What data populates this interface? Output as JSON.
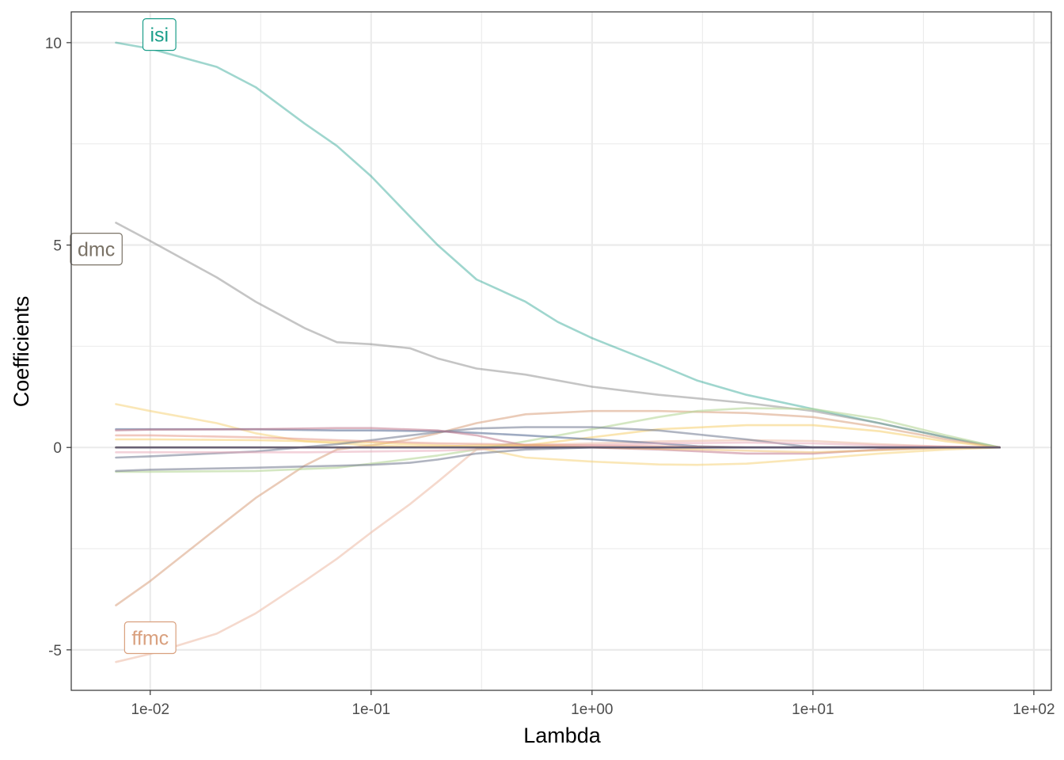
{
  "chart_data": {
    "type": "line",
    "xlabel": "Lambda",
    "ylabel": "Coefficients",
    "x_scale": "log10",
    "xlim": [
      0.00439,
      120
    ],
    "ylim": [
      -6.0,
      10.76
    ],
    "x_ticks": [
      {
        "value": 0.01,
        "label": "1e-02"
      },
      {
        "value": 0.1,
        "label": "1e-01"
      },
      {
        "value": 1,
        "label": "1e+00"
      },
      {
        "value": 10,
        "label": "1e+01"
      },
      {
        "value": 100,
        "label": "1e+02"
      }
    ],
    "y_ticks": [
      {
        "value": -5,
        "label": "-5"
      },
      {
        "value": 0,
        "label": "0"
      },
      {
        "value": 5,
        "label": "5"
      },
      {
        "value": 10,
        "label": "10"
      }
    ],
    "grid": true,
    "legend": "none",
    "series": [
      {
        "label": "isi",
        "color": "#1b9e8a",
        "opacity": 0.42,
        "label_color": "#1b9e8a",
        "label_at": [
          0.011,
          10.2
        ],
        "values": [
          [
            0.007,
            10.0
          ],
          [
            0.01,
            9.85
          ],
          [
            0.02,
            9.4
          ],
          [
            0.03,
            8.9
          ],
          [
            0.05,
            8.0
          ],
          [
            0.07,
            7.45
          ],
          [
            0.1,
            6.7
          ],
          [
            0.15,
            5.7
          ],
          [
            0.2,
            5.0
          ],
          [
            0.3,
            4.15
          ],
          [
            0.5,
            3.6
          ],
          [
            0.7,
            3.1
          ],
          [
            1,
            2.7
          ],
          [
            2,
            2.05
          ],
          [
            3,
            1.65
          ],
          [
            5,
            1.3
          ],
          [
            10,
            0.95
          ],
          [
            20,
            0.6
          ],
          [
            40,
            0.25
          ],
          [
            70,
            0.0
          ]
        ]
      },
      {
        "label": "dmc",
        "color": "#8c8c8c",
        "opacity": 0.5,
        "label_color": "#7a7266",
        "label_at": [
          0.0057,
          4.9
        ],
        "values": [
          [
            0.007,
            5.55
          ],
          [
            0.01,
            5.1
          ],
          [
            0.02,
            4.2
          ],
          [
            0.03,
            3.6
          ],
          [
            0.05,
            2.95
          ],
          [
            0.07,
            2.6
          ],
          [
            0.1,
            2.55
          ],
          [
            0.15,
            2.45
          ],
          [
            0.2,
            2.2
          ],
          [
            0.3,
            1.95
          ],
          [
            0.5,
            1.8
          ],
          [
            1,
            1.5
          ],
          [
            2,
            1.3
          ],
          [
            5,
            1.1
          ],
          [
            10,
            0.9
          ],
          [
            20,
            0.6
          ],
          [
            40,
            0.25
          ],
          [
            70,
            0.0
          ]
        ]
      },
      {
        "label": "ffmc",
        "color": "#d9a07e",
        "opacity": 0.55,
        "label_color": "#d9a07e",
        "label_at": [
          0.01,
          -4.7
        ],
        "values": [
          [
            0.007,
            -3.9
          ],
          [
            0.01,
            -3.3
          ],
          [
            0.02,
            -2.0
          ],
          [
            0.03,
            -1.25
          ],
          [
            0.05,
            -0.45
          ],
          [
            0.07,
            -0.05
          ],
          [
            0.1,
            0.05
          ],
          [
            0.15,
            0.2
          ],
          [
            0.2,
            0.35
          ],
          [
            0.3,
            0.6
          ],
          [
            0.5,
            0.82
          ],
          [
            1,
            0.9
          ],
          [
            2,
            0.9
          ],
          [
            5,
            0.85
          ],
          [
            10,
            0.75
          ],
          [
            20,
            0.5
          ],
          [
            40,
            0.2
          ],
          [
            70,
            0.0
          ]
        ]
      },
      {
        "color": "#eebfac",
        "opacity": 0.6,
        "values": [
          [
            0.007,
            -5.3
          ],
          [
            0.01,
            -5.1
          ],
          [
            0.02,
            -4.6
          ],
          [
            0.03,
            -4.1
          ],
          [
            0.05,
            -3.3
          ],
          [
            0.07,
            -2.75
          ],
          [
            0.1,
            -2.1
          ],
          [
            0.15,
            -1.4
          ],
          [
            0.2,
            -0.85
          ],
          [
            0.3,
            -0.05
          ],
          [
            0.5,
            0.05
          ],
          [
            1,
            0.1
          ],
          [
            2,
            0.15
          ],
          [
            5,
            0.18
          ],
          [
            10,
            0.16
          ],
          [
            20,
            0.08
          ],
          [
            40,
            0.02
          ],
          [
            70,
            0.0
          ]
        ]
      },
      {
        "color": "#f6d070",
        "opacity": 0.5,
        "values": [
          [
            0.007,
            1.07
          ],
          [
            0.01,
            0.9
          ],
          [
            0.02,
            0.6
          ],
          [
            0.03,
            0.35
          ],
          [
            0.05,
            0.15
          ],
          [
            0.1,
            0.05
          ],
          [
            0.2,
            0.0
          ],
          [
            0.3,
            0.0
          ],
          [
            0.5,
            -0.25
          ],
          [
            1,
            -0.35
          ],
          [
            2,
            -0.42
          ],
          [
            3,
            -0.43
          ],
          [
            5,
            -0.4
          ],
          [
            10,
            -0.28
          ],
          [
            20,
            -0.15
          ],
          [
            40,
            -0.05
          ],
          [
            70,
            0.0
          ]
        ]
      },
      {
        "color": "#f6d070",
        "opacity": 0.55,
        "values": [
          [
            0.007,
            0.2
          ],
          [
            0.01,
            0.2
          ],
          [
            0.03,
            0.18
          ],
          [
            0.1,
            0.12
          ],
          [
            0.2,
            0.05
          ],
          [
            0.3,
            0.02
          ],
          [
            0.5,
            0.05
          ],
          [
            1,
            0.25
          ],
          [
            2,
            0.45
          ],
          [
            5,
            0.55
          ],
          [
            10,
            0.55
          ],
          [
            20,
            0.4
          ],
          [
            40,
            0.15
          ],
          [
            70,
            0.0
          ]
        ]
      },
      {
        "color": "#b7d79a",
        "opacity": 0.6,
        "values": [
          [
            0.007,
            -0.6
          ],
          [
            0.01,
            -0.6
          ],
          [
            0.03,
            -0.58
          ],
          [
            0.07,
            -0.5
          ],
          [
            0.1,
            -0.4
          ],
          [
            0.2,
            -0.2
          ],
          [
            0.3,
            -0.05
          ],
          [
            0.5,
            0.15
          ],
          [
            1,
            0.45
          ],
          [
            2,
            0.75
          ],
          [
            3,
            0.9
          ],
          [
            5,
            0.97
          ],
          [
            10,
            0.95
          ],
          [
            20,
            0.7
          ],
          [
            40,
            0.3
          ],
          [
            70,
            0.0
          ]
        ]
      },
      {
        "color": "#5f7399",
        "opacity": 0.6,
        "values": [
          [
            0.007,
            0.45
          ],
          [
            0.01,
            0.45
          ],
          [
            0.03,
            0.45
          ],
          [
            0.07,
            0.42
          ],
          [
            0.1,
            0.42
          ],
          [
            0.2,
            0.4
          ],
          [
            0.3,
            0.36
          ],
          [
            0.5,
            0.3
          ],
          [
            1,
            0.2
          ],
          [
            2,
            0.1
          ],
          [
            3,
            0.03
          ],
          [
            5,
            0.0
          ],
          [
            10,
            0.0
          ],
          [
            20,
            0.0
          ],
          [
            70,
            0.0
          ]
        ]
      },
      {
        "color": "#6f7890",
        "opacity": 0.55,
        "values": [
          [
            0.007,
            -0.25
          ],
          [
            0.01,
            -0.22
          ],
          [
            0.03,
            -0.1
          ],
          [
            0.07,
            0.08
          ],
          [
            0.1,
            0.18
          ],
          [
            0.2,
            0.38
          ],
          [
            0.3,
            0.47
          ],
          [
            0.5,
            0.5
          ],
          [
            1,
            0.5
          ],
          [
            2,
            0.42
          ],
          [
            5,
            0.2
          ],
          [
            10,
            0.0
          ],
          [
            20,
            0.0
          ],
          [
            70,
            0.0
          ]
        ]
      },
      {
        "color": "#7c8296",
        "opacity": 0.6,
        "values": [
          [
            0.007,
            -0.58
          ],
          [
            0.01,
            -0.55
          ],
          [
            0.03,
            -0.5
          ],
          [
            0.1,
            -0.43
          ],
          [
            0.15,
            -0.38
          ],
          [
            0.2,
            -0.3
          ],
          [
            0.3,
            -0.15
          ],
          [
            0.5,
            -0.05
          ],
          [
            1,
            0.0
          ],
          [
            2,
            0.0
          ],
          [
            70,
            0.0
          ]
        ]
      },
      {
        "color": "#c27a8e",
        "opacity": 0.55,
        "values": [
          [
            0.007,
            0.42
          ],
          [
            0.01,
            0.44
          ],
          [
            0.03,
            0.45
          ],
          [
            0.07,
            0.48
          ],
          [
            0.1,
            0.48
          ],
          [
            0.2,
            0.42
          ],
          [
            0.3,
            0.3
          ],
          [
            0.4,
            0.15
          ],
          [
            0.5,
            0.05
          ],
          [
            1,
            0.0
          ],
          [
            2,
            -0.05
          ],
          [
            5,
            -0.15
          ],
          [
            10,
            -0.15
          ],
          [
            20,
            -0.05
          ],
          [
            40,
            0.0
          ],
          [
            70,
            0.0
          ]
        ]
      },
      {
        "color": "#e59a8a",
        "opacity": 0.55,
        "values": [
          [
            0.007,
            0.3
          ],
          [
            0.01,
            0.3
          ],
          [
            0.03,
            0.25
          ],
          [
            0.1,
            0.15
          ],
          [
            0.2,
            0.1
          ],
          [
            0.5,
            0.07
          ],
          [
            1,
            0.05
          ],
          [
            2,
            0.03
          ],
          [
            5,
            0.0
          ],
          [
            70,
            0.0
          ]
        ]
      },
      {
        "color": "#e8a5b5",
        "opacity": 0.5,
        "values": [
          [
            0.007,
            -0.12
          ],
          [
            0.01,
            -0.12
          ],
          [
            0.05,
            -0.12
          ],
          [
            0.1,
            -0.1
          ],
          [
            0.2,
            -0.08
          ],
          [
            0.3,
            -0.05
          ],
          [
            0.5,
            0.0
          ],
          [
            1,
            0.05
          ],
          [
            2,
            0.1
          ],
          [
            5,
            0.12
          ],
          [
            10,
            0.1
          ],
          [
            20,
            0.05
          ],
          [
            70,
            0.0
          ]
        ]
      },
      {
        "color": "#efc070",
        "opacity": 0.5,
        "values": [
          [
            0.007,
            0.0
          ],
          [
            0.1,
            0.0
          ],
          [
            0.2,
            0.02
          ],
          [
            0.3,
            0.05
          ],
          [
            0.5,
            0.05
          ],
          [
            1,
            0.0
          ],
          [
            3,
            -0.05
          ],
          [
            10,
            -0.12
          ],
          [
            20,
            -0.07
          ],
          [
            40,
            -0.01
          ],
          [
            70,
            0.0
          ]
        ]
      },
      {
        "color": "#514d6a",
        "opacity": 0.85,
        "values": [
          [
            0.007,
            0.0
          ],
          [
            0.1,
            0.0
          ],
          [
            0.5,
            0.0
          ],
          [
            1,
            0.0
          ],
          [
            10,
            0.0
          ],
          [
            70,
            0.0
          ]
        ]
      }
    ]
  }
}
